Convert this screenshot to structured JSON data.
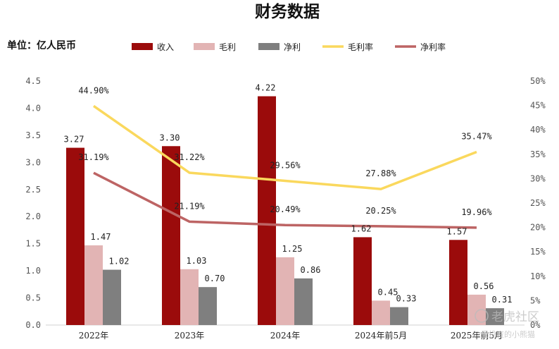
{
  "chart_data": {
    "type": "bar",
    "title": "财务数据",
    "unit_label": "单位：亿人民币",
    "categories": [
      "2022年",
      "2023年",
      "2024年",
      "2024年前5月",
      "2025年前5月"
    ],
    "series": [
      {
        "name": "收入",
        "type": "bar",
        "axis": "left",
        "color": "#9b0b0b",
        "values": [
          3.27,
          3.3,
          4.22,
          1.62,
          1.57
        ],
        "labels": [
          "3.27",
          "3.30",
          "4.22",
          "1.62",
          "1.57"
        ]
      },
      {
        "name": "毛利",
        "type": "bar",
        "axis": "left",
        "color": "#e2b4b4",
        "values": [
          1.47,
          1.03,
          1.25,
          0.45,
          0.56
        ],
        "labels": [
          "1.47",
          "1.03",
          "1.25",
          "0.45",
          "0.56"
        ]
      },
      {
        "name": "净利",
        "type": "bar",
        "axis": "left",
        "color": "#7f7f7f",
        "values": [
          1.02,
          0.7,
          0.86,
          0.33,
          0.31
        ],
        "labels": [
          "1.02",
          "0.70",
          "0.86",
          "0.33",
          "0.31"
        ]
      },
      {
        "name": "毛利率",
        "type": "line",
        "axis": "right",
        "color": "#fad85d",
        "values": [
          44.9,
          31.22,
          29.56,
          27.88,
          35.47
        ],
        "labels": [
          "44.90%",
          "31.22%",
          "29.56%",
          "27.88%",
          "35.47%"
        ]
      },
      {
        "name": "净利率",
        "type": "line",
        "axis": "right",
        "color": "#bd6464",
        "values": [
          31.19,
          21.19,
          20.49,
          20.25,
          19.96
        ],
        "labels": [
          "31.19%",
          "21.19%",
          "20.49%",
          "20.25%",
          "19.96%"
        ]
      }
    ],
    "y_left": {
      "min": 0,
      "max": 4.5,
      "ticks": [
        "0.0",
        "0.5",
        "1.0",
        "1.5",
        "2.0",
        "2.5",
        "3.0",
        "3.5",
        "4.0",
        "4.5"
      ]
    },
    "y_right": {
      "min": 0,
      "max": 50,
      "ticks": [
        "0%",
        "5%",
        "10%",
        "15%",
        "20%",
        "25%",
        "30%",
        "35%",
        "40%",
        "45%",
        "50%"
      ]
    },
    "grid": false,
    "legend_position": "top"
  },
  "watermark": {
    "brand": "老虎社区",
    "author": "@爱投资的小熊猫"
  }
}
